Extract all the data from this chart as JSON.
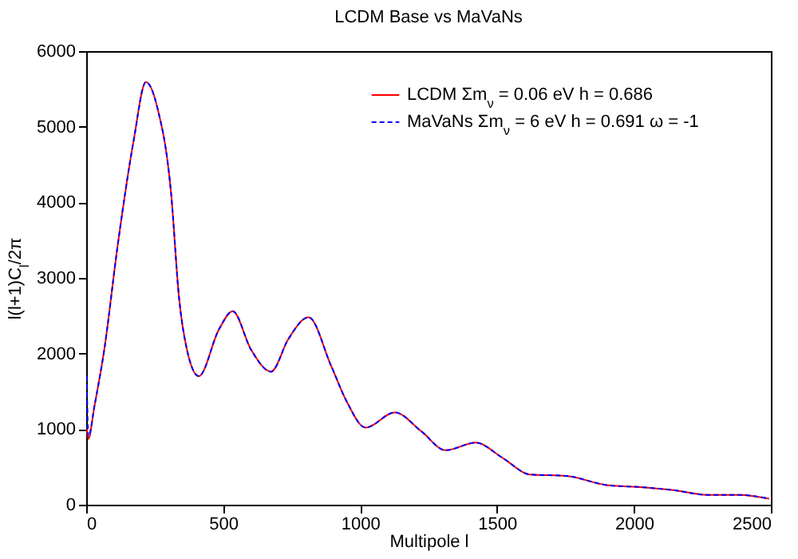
{
  "chart_data": {
    "type": "line",
    "title": "LCDM Base vs MaVaNs",
    "xlabel": "Multipole l",
    "ylabel": "l(l+1)C$_{l}$/2π",
    "xlim": [
      0,
      2500
    ],
    "xticks": [
      0,
      500,
      1000,
      1500,
      2000,
      2500
    ],
    "ylim": [
      0,
      6000
    ],
    "yticks": [
      0,
      1000,
      2000,
      3000,
      4000,
      5000,
      6000
    ],
    "grid": false,
    "legend": "top right",
    "marker": "none",
    "series": [
      {
        "name": "LCDM Σm$_{ν}$ = 0.06 eV h = 0.686",
        "color": "#ff0000",
        "line_style": "solid",
        "x": [
          2,
          8,
          30,
          66,
          115,
          173,
          218,
          260,
          310,
          339,
          368,
          411,
          485,
          535,
          602,
          675,
          738,
          812,
          894,
          952,
          1020,
          1127,
          1224,
          1312,
          1422,
          1520,
          1620,
          1754,
          1900,
          2034,
          2150,
          2267,
          2383,
          2494
        ],
        "values": [
          1000,
          870,
          1300,
          2050,
          3430,
          4810,
          5590,
          5250,
          4120,
          2740,
          2050,
          1700,
          2320,
          2560,
          2050,
          1760,
          2190,
          2480,
          1840,
          1360,
          1020,
          1220,
          970,
          720,
          820,
          620,
          400,
          380,
          260,
          230,
          190,
          130,
          130,
          80
        ]
      },
      {
        "name": "MaVaNs Σm$_{ν}$ = 6 eV h = 0.691 ω = -1",
        "color": "#0000ff",
        "line_style": "dashed",
        "x": [
          2,
          8,
          30,
          66,
          115,
          173,
          218,
          260,
          310,
          339,
          368,
          411,
          485,
          535,
          602,
          675,
          738,
          812,
          894,
          952,
          1020,
          1127,
          1224,
          1312,
          1422,
          1520,
          1620,
          1754,
          1900,
          2034,
          2150,
          2267,
          2383,
          2494
        ],
        "values": [
          1700,
          900,
          1300,
          2050,
          3430,
          4810,
          5590,
          5250,
          4120,
          2740,
          2050,
          1700,
          2320,
          2560,
          2050,
          1760,
          2190,
          2480,
          1840,
          1360,
          1020,
          1220,
          970,
          720,
          820,
          620,
          400,
          380,
          260,
          230,
          190,
          130,
          130,
          80
        ]
      }
    ]
  }
}
